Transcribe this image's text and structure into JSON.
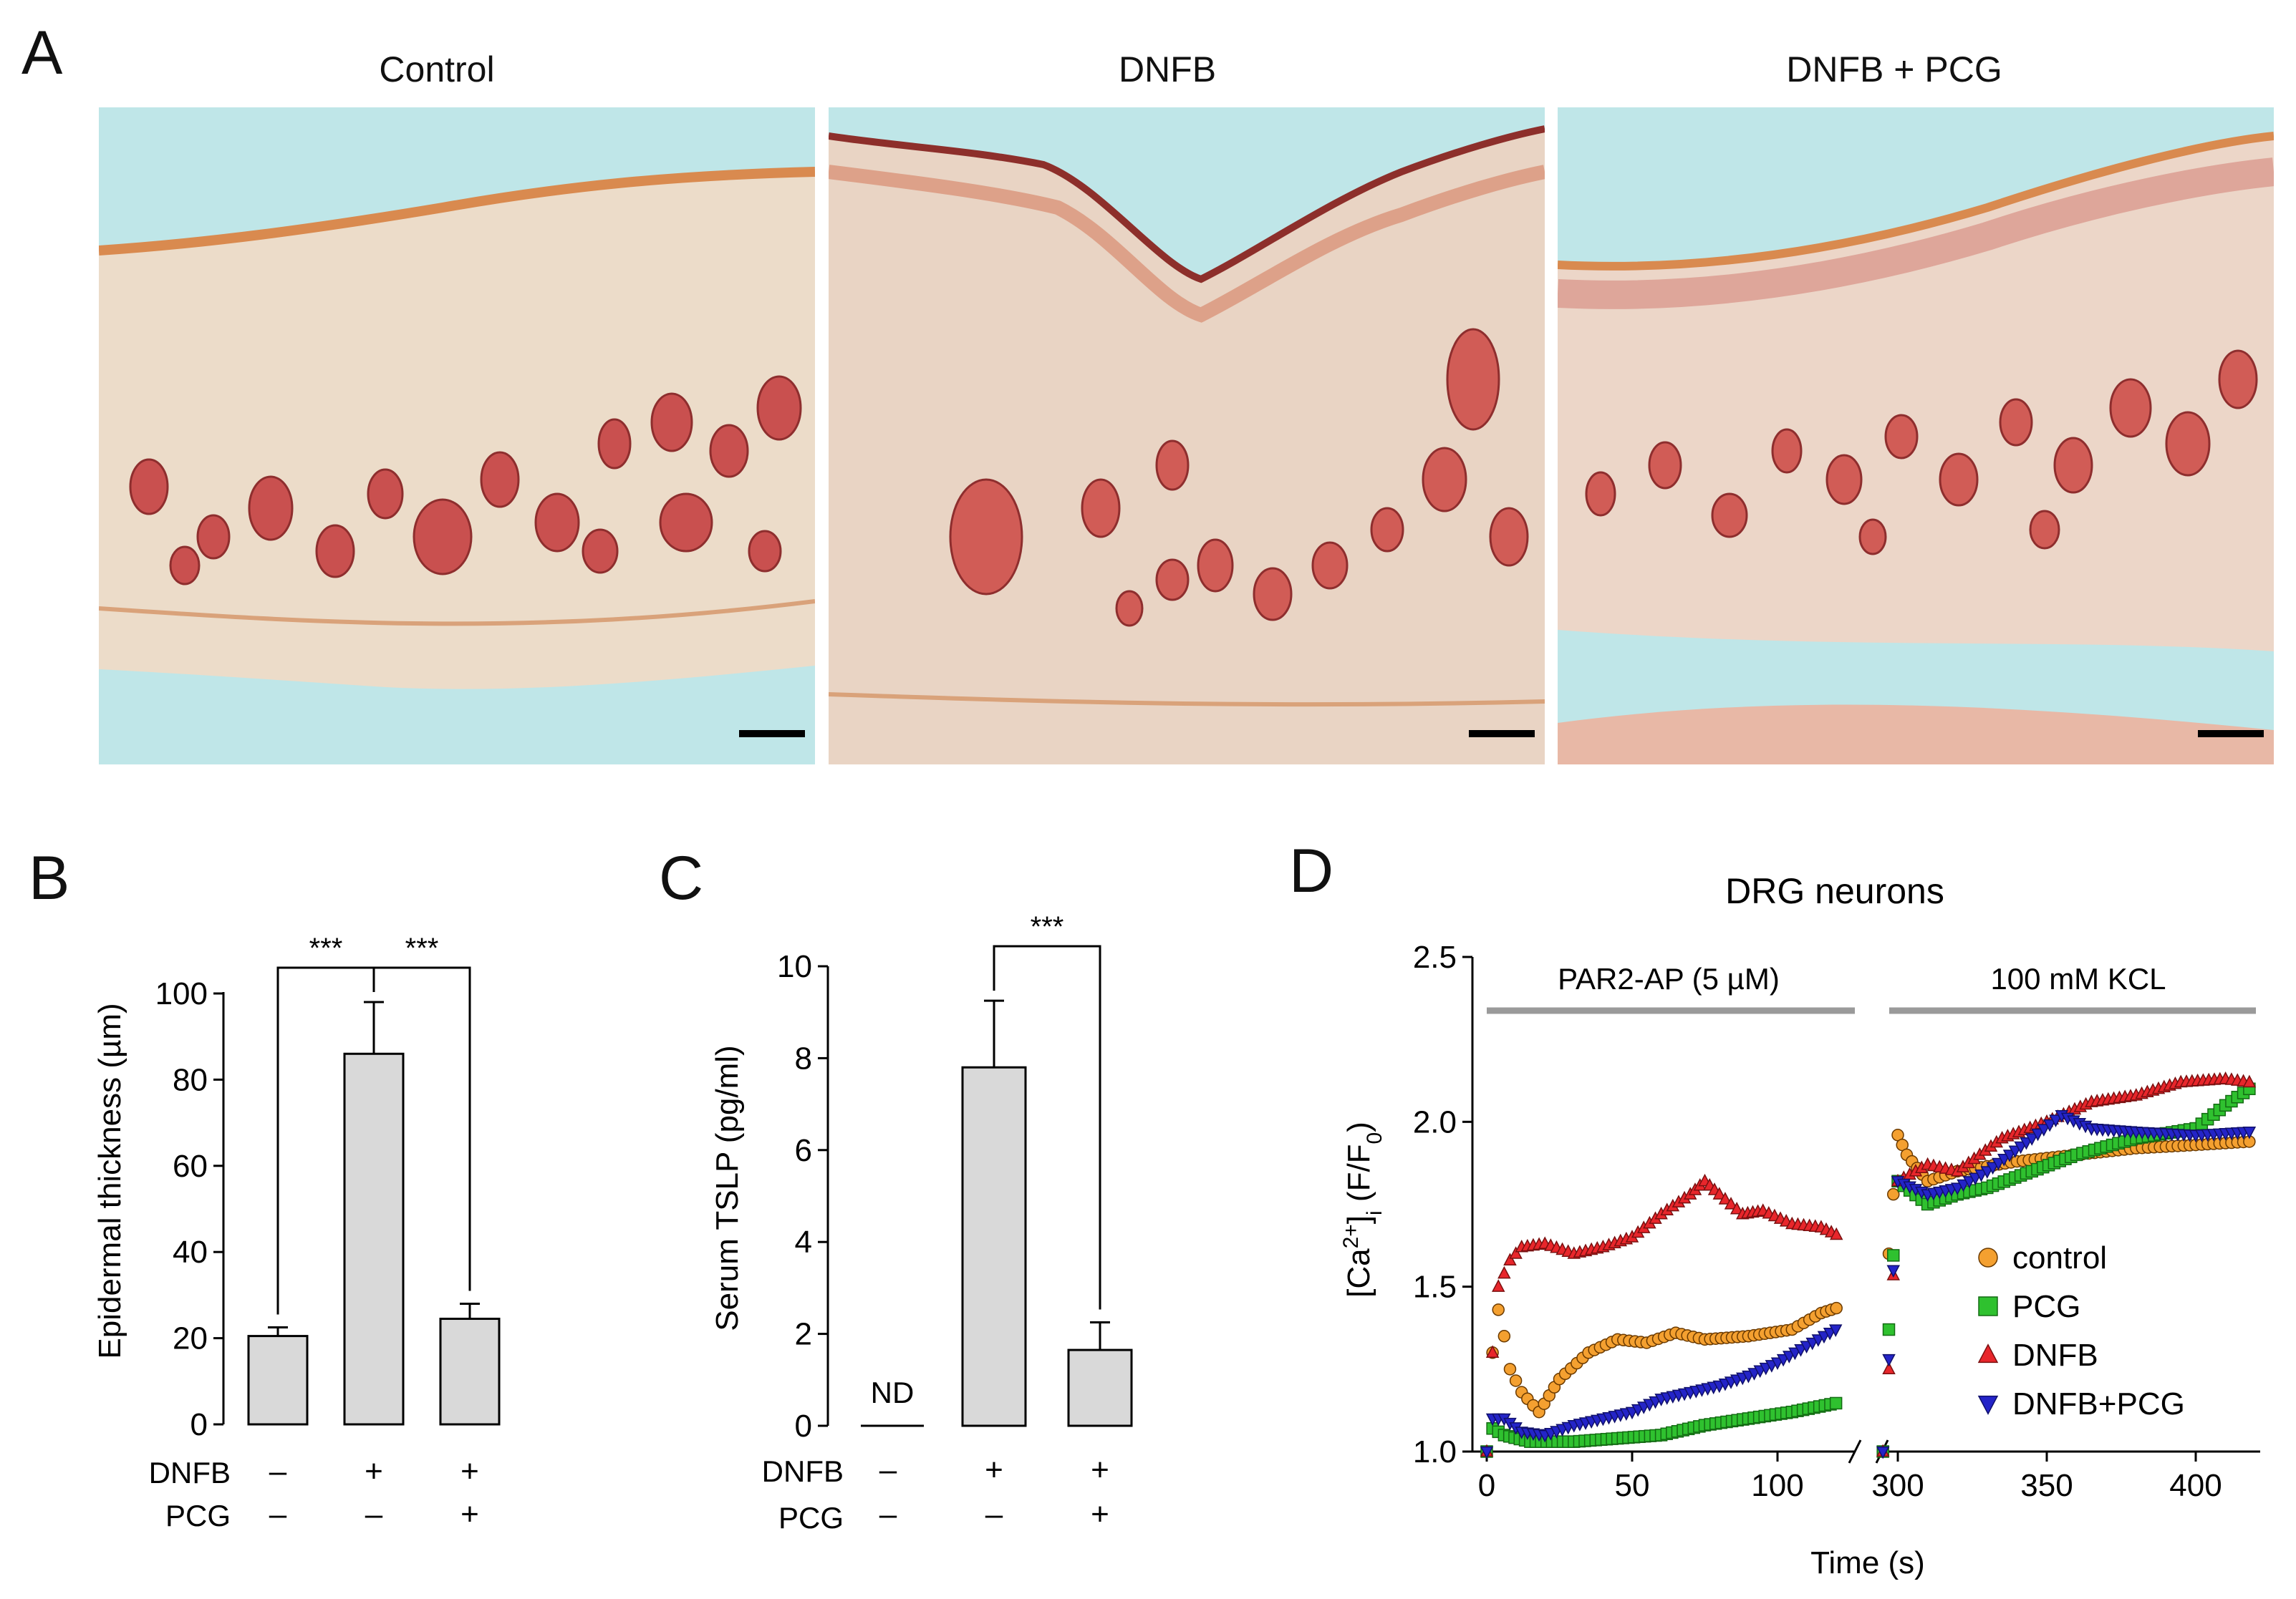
{
  "panel_a": {
    "letter": "A",
    "titles": [
      "Control",
      "DNFB",
      "DNFB + PCG"
    ],
    "image_names": [
      "control-histology-image",
      "dnfb-histology-image",
      "dnfb-pcg-histology-image"
    ]
  },
  "panel_b": {
    "letter": "B",
    "row_labels": [
      "DNFB",
      "PCG"
    ],
    "conditions": [
      [
        "–",
        "–"
      ],
      [
        "+",
        "–"
      ],
      [
        "+",
        "+"
      ]
    ],
    "sig": [
      "***",
      "***"
    ]
  },
  "panel_c": {
    "letter": "C",
    "row_labels": [
      "DNFB",
      "PCG"
    ],
    "conditions": [
      [
        "–",
        "–"
      ],
      [
        "+",
        "–"
      ],
      [
        "+",
        "+"
      ]
    ],
    "nd_label": "ND",
    "sig": [
      "***"
    ]
  },
  "panel_d": {
    "letter": "D",
    "title": "DRG neurons",
    "stim1": "PAR2-AP (5 µM)",
    "stim2": "100 mM KCL"
  },
  "colors": {
    "bar_fill": "#d9d9d9",
    "control": "#f4a030",
    "pcg": "#2fc12f",
    "dnfb": "#e8262b",
    "dnfb_pcg": "#2424c8",
    "stim_bar": "#9a9a9a"
  },
  "chart_data": [
    {
      "type": "bar",
      "panel": "B",
      "categories": [
        "DNFB –/PCG –",
        "DNFB +/PCG –",
        "DNFB +/PCG +"
      ],
      "values": [
        20.5,
        86,
        24.5
      ],
      "errors": [
        2,
        12,
        3.5
      ],
      "ylabel": "Epidermal thickness (µm)",
      "ylim": [
        0,
        100
      ],
      "yticks": [
        0,
        20,
        40,
        60,
        80,
        100
      ],
      "significance": [
        {
          "from": 0,
          "to": 1,
          "label": "***"
        },
        {
          "from": 1,
          "to": 2,
          "label": "***"
        }
      ]
    },
    {
      "type": "bar",
      "panel": "C",
      "categories": [
        "DNFB –/PCG –",
        "DNFB +/PCG –",
        "DNFB +/PCG +"
      ],
      "values": [
        0,
        7.8,
        1.65
      ],
      "errors": [
        0,
        1.45,
        0.6
      ],
      "ylabel": "Serum TSLP (pg/ml)",
      "ylim": [
        0,
        10
      ],
      "yticks": [
        0,
        2,
        4,
        6,
        8,
        10
      ],
      "annotations": [
        "ND"
      ],
      "significance": [
        {
          "from": 1,
          "to": 2,
          "label": "***"
        }
      ]
    },
    {
      "type": "scatter",
      "panel": "D",
      "title": "DRG neurons",
      "xlabel": "Time (s)",
      "ylabel": "[Ca2+]i (F/F0)",
      "ylim": [
        1.0,
        2.5
      ],
      "yticks": [
        1.0,
        1.5,
        2.0,
        2.5
      ],
      "x_segments": [
        [
          0,
          125
        ],
        [
          295,
          420
        ]
      ],
      "xticks": [
        0,
        50,
        100,
        300,
        350,
        400
      ],
      "legend": [
        "control",
        "PCG",
        "DNFB",
        "DNFB+PCG"
      ],
      "legend_position": "lower-right",
      "series": [
        {
          "name": "control",
          "points": [
            [
              0,
              1.0
            ],
            [
              2,
              1.3
            ],
            [
              4,
              1.43
            ],
            [
              6,
              1.35
            ],
            [
              8,
              1.25
            ],
            [
              12,
              1.18
            ],
            [
              18,
              1.12
            ],
            [
              25,
              1.22
            ],
            [
              35,
              1.3
            ],
            [
              45,
              1.34
            ],
            [
              55,
              1.33
            ],
            [
              65,
              1.36
            ],
            [
              75,
              1.34
            ],
            [
              90,
              1.35
            ],
            [
              105,
              1.37
            ],
            [
              115,
              1.42
            ],
            [
              122,
              1.44
            ],
            [
              295,
              1.0
            ],
            [
              297,
              1.6
            ],
            [
              300,
              1.96
            ],
            [
              303,
              1.9
            ],
            [
              310,
              1.82
            ],
            [
              320,
              1.85
            ],
            [
              340,
              1.88
            ],
            [
              360,
              1.9
            ],
            [
              380,
              1.92
            ],
            [
              400,
              1.93
            ],
            [
              418,
              1.94
            ]
          ]
        },
        {
          "name": "PCG",
          "points": [
            [
              0,
              1.0
            ],
            [
              2,
              1.07
            ],
            [
              6,
              1.05
            ],
            [
              15,
              1.03
            ],
            [
              30,
              1.03
            ],
            [
              45,
              1.04
            ],
            [
              60,
              1.05
            ],
            [
              75,
              1.08
            ],
            [
              90,
              1.1
            ],
            [
              105,
              1.12
            ],
            [
              122,
              1.15
            ],
            [
              295,
              1.0
            ],
            [
              297,
              1.37
            ],
            [
              300,
              1.82
            ],
            [
              310,
              1.75
            ],
            [
              320,
              1.78
            ],
            [
              330,
              1.8
            ],
            [
              345,
              1.85
            ],
            [
              360,
              1.9
            ],
            [
              380,
              1.95
            ],
            [
              400,
              1.98
            ],
            [
              410,
              2.05
            ],
            [
              418,
              2.1
            ]
          ]
        },
        {
          "name": "DNFB",
          "points": [
            [
              0,
              1.0
            ],
            [
              2,
              1.3
            ],
            [
              4,
              1.5
            ],
            [
              8,
              1.58
            ],
            [
              12,
              1.62
            ],
            [
              20,
              1.63
            ],
            [
              30,
              1.6
            ],
            [
              40,
              1.62
            ],
            [
              50,
              1.65
            ],
            [
              60,
              1.72
            ],
            [
              70,
              1.78
            ],
            [
              75,
              1.82
            ],
            [
              80,
              1.78
            ],
            [
              88,
              1.72
            ],
            [
              95,
              1.73
            ],
            [
              105,
              1.69
            ],
            [
              115,
              1.68
            ],
            [
              122,
              1.65
            ],
            [
              295,
              1.0
            ],
            [
              297,
              1.25
            ],
            [
              300,
              1.82
            ],
            [
              310,
              1.87
            ],
            [
              320,
              1.85
            ],
            [
              335,
              1.95
            ],
            [
              350,
              2.0
            ],
            [
              365,
              2.06
            ],
            [
              380,
              2.08
            ],
            [
              395,
              2.12
            ],
            [
              410,
              2.13
            ],
            [
              418,
              2.12
            ]
          ]
        },
        {
          "name": "DNFB+PCG",
          "points": [
            [
              0,
              1.0
            ],
            [
              2,
              1.1
            ],
            [
              6,
              1.1
            ],
            [
              12,
              1.06
            ],
            [
              20,
              1.05
            ],
            [
              30,
              1.08
            ],
            [
              40,
              1.1
            ],
            [
              50,
              1.12
            ],
            [
              60,
              1.16
            ],
            [
              70,
              1.18
            ],
            [
              80,
              1.2
            ],
            [
              90,
              1.23
            ],
            [
              100,
              1.27
            ],
            [
              110,
              1.32
            ],
            [
              122,
              1.38
            ],
            [
              295,
              1.0
            ],
            [
              297,
              1.28
            ],
            [
              300,
              1.82
            ],
            [
              310,
              1.78
            ],
            [
              320,
              1.8
            ],
            [
              330,
              1.85
            ],
            [
              345,
              1.95
            ],
            [
              355,
              2.02
            ],
            [
              365,
              1.98
            ],
            [
              380,
              1.97
            ],
            [
              400,
              1.96
            ],
            [
              418,
              1.97
            ]
          ]
        }
      ]
    }
  ]
}
